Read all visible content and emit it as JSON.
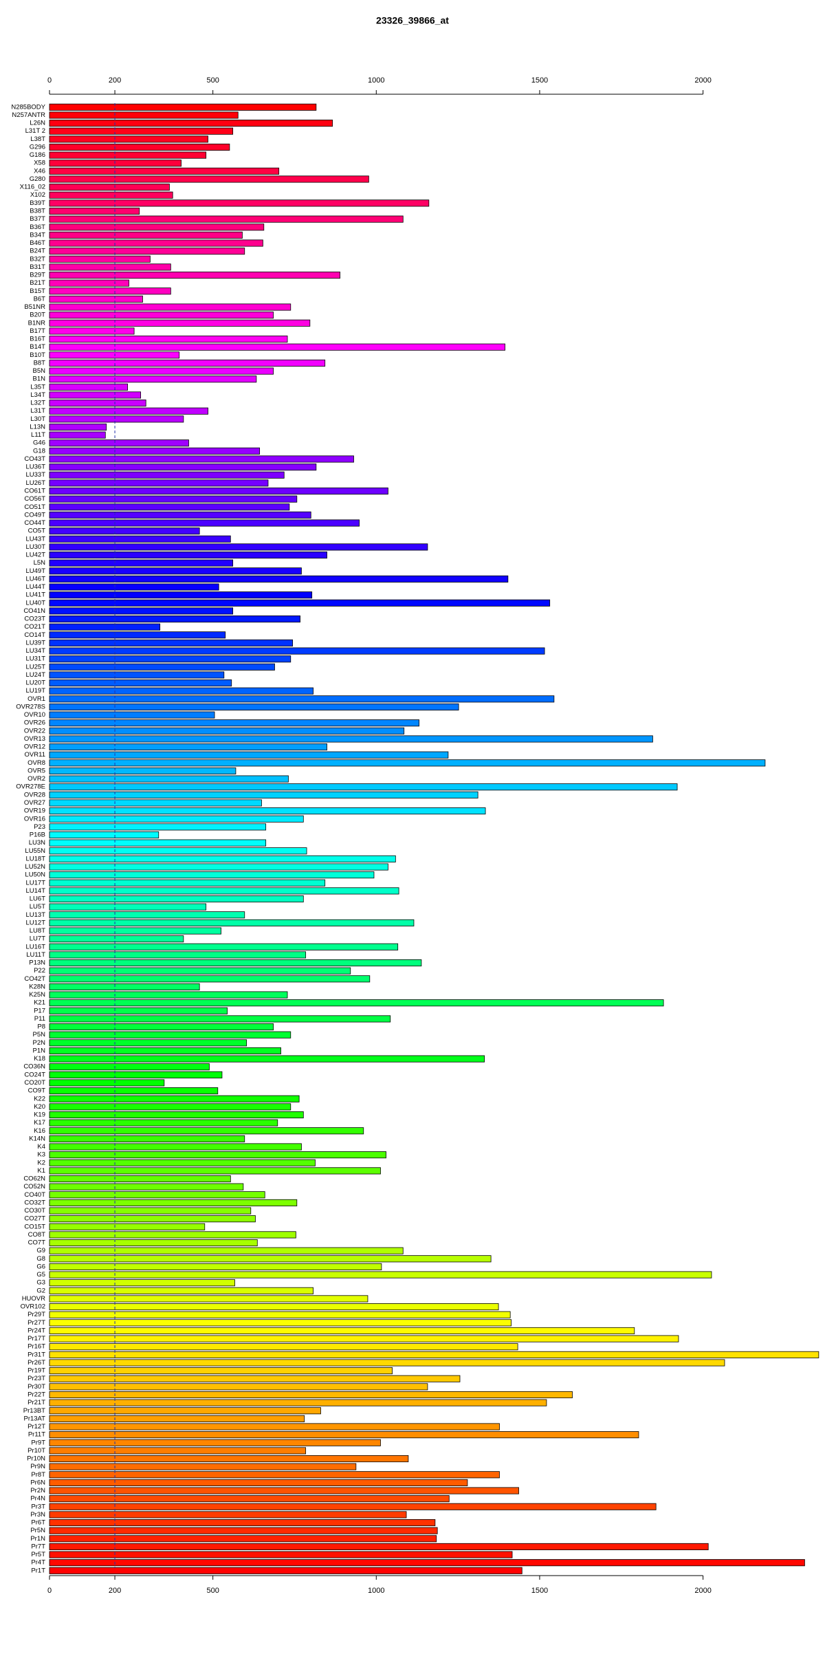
{
  "chart_data": {
    "type": "bar",
    "orientation": "horizontal",
    "title": "23326_39866_at",
    "categories": [
      "N285BODY",
      "N257ANTR",
      "L26N",
      "L31T 2",
      "L38T",
      "G296",
      "G186",
      "X58",
      "X46",
      "G280",
      "X116_02",
      "X102",
      "B39T",
      "B38T",
      "B37T",
      "B36T",
      "B34T",
      "B46T",
      "B24T",
      "B32T",
      "B31T",
      "B29T",
      "B21T",
      "B15T",
      "B6T",
      "B51NR",
      "B20T",
      "B1NR",
      "B17T",
      "B16T",
      "B14T",
      "B10T",
      "B8T",
      "B5N",
      "B1N",
      "L35T",
      "L34T",
      "L32T",
      "L31T",
      "L30T",
      "L13N",
      "L11T",
      "G46",
      "G18",
      "CO43T",
      "LU36T",
      "LU33T",
      "LU26T",
      "CO61T",
      "CO56T",
      "CO51T",
      "CO49T",
      "CO44T",
      "CO5T",
      "LU43T",
      "LU30T",
      "LU42T",
      "L5N",
      "LU49T",
      "LU46T",
      "LU44T",
      "LU41T",
      "LU40T",
      "CO41N",
      "CO23T",
      "CO21T",
      "CO14T",
      "LU39T",
      "LU34T",
      "LU31T",
      "LU25T",
      "LU24T",
      "LU20T",
      "LU19T",
      "OVR1",
      "OVR278S",
      "OVR10",
      "OVR26",
      "OVR22",
      "OVR13",
      "OVR12",
      "OVR11",
      "OVR8",
      "OVR5",
      "OVR2",
      "OVR278E",
      "OVR28",
      "OVR27",
      "OVR19",
      "OVR16",
      "P23",
      "P16B",
      "LU3N",
      "LU55N",
      "LU18T",
      "LU52N",
      "LU50N",
      "LU17T",
      "LU14T",
      "LU6T",
      "LU5T",
      "LU13T",
      "LU12T",
      "LU8T",
      "LU7T",
      "LU16T",
      "LU11T",
      "P13N",
      "P22",
      "CO42T",
      "K28N",
      "K25N",
      "K21",
      "P17",
      "P11",
      "P8",
      "P5N",
      "P2N",
      "P1N",
      "K18",
      "CO36N",
      "CO24T",
      "CO20T",
      "CO9T",
      "K22",
      "K20",
      "K19",
      "K17",
      "K16",
      "K14N",
      "K4",
      "K3",
      "K2",
      "K1",
      "CO62N",
      "CO52N",
      "CO40T",
      "CO32T",
      "CO30T",
      "CO27T",
      "CO15T",
      "CO8T",
      "CO7T",
      "G9",
      "G8",
      "G6",
      "G5",
      "G3",
      "G2",
      "HUOVR",
      "OVR102",
      "Pr29T",
      "Pr27T",
      "Pr24T",
      "Pr17T",
      "Pr16T",
      "Pr31T",
      "Pr26T",
      "Pr19T",
      "Pr23T",
      "Pr30T",
      "Pr22T",
      "Pr21T",
      "Pr13BT",
      "Pr13AT",
      "Pr12T",
      "Pr11T",
      "Pr9T",
      "Pr10T",
      "Pr10N",
      "Pr9N",
      "Pr8T",
      "Pr6N",
      "Pr2N",
      "Pr4N",
      "Pr3T",
      "Pr3N",
      "Pr6T",
      "Pr5N",
      "Pr1N",
      "Pr7T",
      "Pr5T",
      "Pr4T",
      "Pr1T"
    ],
    "values": [
      816,
      577,
      866,
      561,
      485,
      551,
      479,
      403,
      702,
      977,
      367,
      377,
      1161,
      275,
      1082,
      656,
      590,
      653,
      597,
      308,
      371,
      889,
      243,
      371,
      285,
      738,
      685,
      797,
      259,
      728,
      1394,
      397,
      843,
      685,
      633,
      239,
      279,
      295,
      485,
      410,
      174,
      171,
      426,
      643,
      931,
      816,
      718,
      669,
      1036,
      757,
      734,
      800,
      948,
      459,
      554,
      1157,
      849,
      561,
      771,
      1403,
      518,
      803,
      1531,
      561,
      767,
      338,
      538,
      744,
      1515,
      738,
      689,
      534,
      557,
      807,
      1544,
      1252,
      505,
      1131,
      1085,
      1846,
      849,
      1220,
      2190,
      570,
      731,
      1921,
      1311,
      649,
      1334,
      777,
      662,
      334,
      662,
      787,
      1059,
      1036,
      993,
      843,
      1069,
      777,
      479,
      597,
      1115,
      525,
      410,
      1066,
      784,
      1138,
      921,
      980,
      459,
      728,
      1879,
      544,
      1043,
      685,
      738,
      603,
      708,
      1331,
      489,
      528,
      351,
      515,
      764,
      738,
      777,
      698,
      961,
      597,
      771,
      1030,
      813,
      1013,
      554,
      593,
      659,
      757,
      616,
      630,
      475,
      754,
      636,
      1082,
      1351,
      1016,
      2026,
      567,
      807,
      974,
      1374,
      1410,
      1413,
      1790,
      1925,
      1433,
      2354,
      2066,
      1049,
      1256,
      1157,
      1600,
      1521,
      830,
      780,
      1377,
      1803,
      1013,
      784,
      1098,
      938,
      1377,
      1279,
      1436,
      1223,
      1856,
      1092,
      1180,
      1187,
      1184,
      2016,
      1416,
      2311,
      1446
    ],
    "colors": [
      "#ff0000",
      "#ff00ff",
      "#0000ff",
      "#00ffff",
      "#00ff00",
      "#ffff00",
      "#ff0000"
    ],
    "xlim": [
      0,
      2360
    ],
    "xticks": [
      0,
      200,
      500,
      1000,
      1500,
      2000
    ],
    "vline": 200
  }
}
